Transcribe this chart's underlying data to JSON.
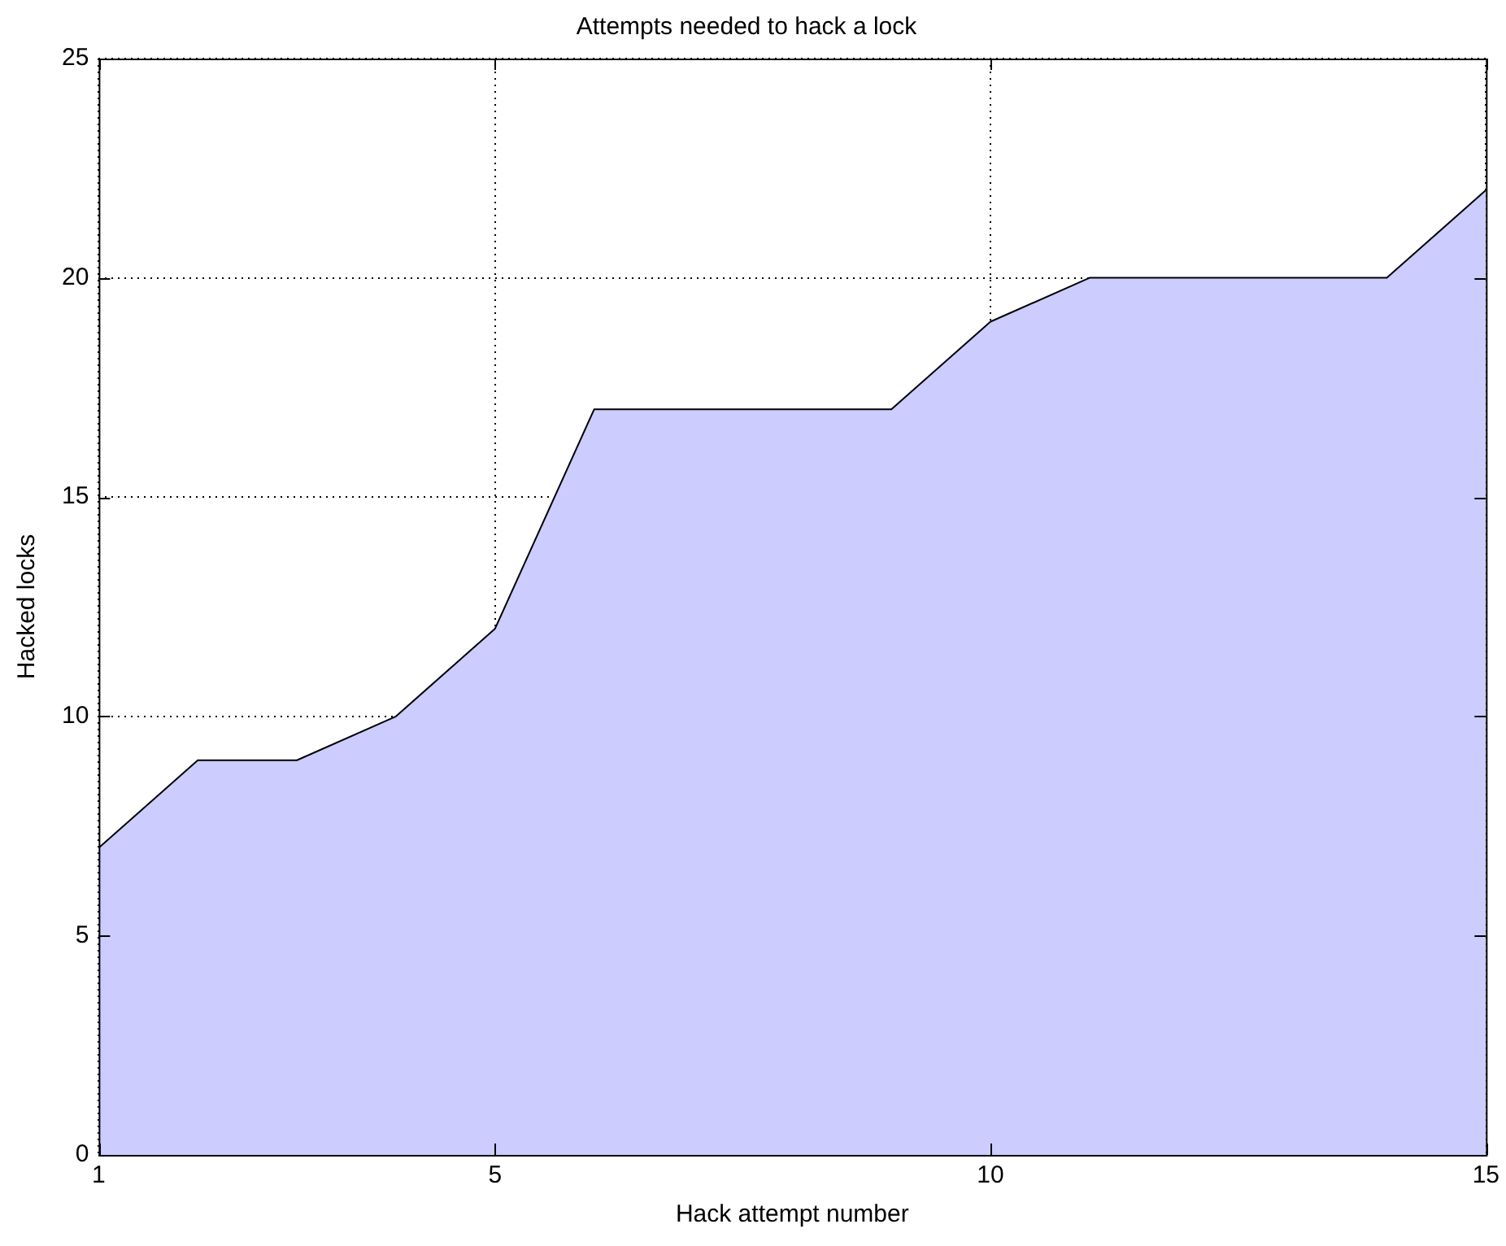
{
  "chart_data": {
    "type": "area",
    "title": "Attempts needed to hack a lock",
    "xlabel": "Hack attempt number",
    "ylabel": "Hacked locks",
    "x": [
      1,
      2,
      3,
      4,
      5,
      6,
      7,
      8,
      9,
      10,
      11,
      12,
      13,
      14,
      15
    ],
    "series": [
      {
        "color": "#ccccff",
        "values": [
          7,
          9,
          9,
          10,
          12,
          17,
          17,
          17,
          17,
          19,
          20,
          20,
          20,
          20,
          22
        ]
      }
    ],
    "xlim": [
      1,
      15
    ],
    "xticks": [
      1,
      5,
      10,
      15
    ],
    "ylim": [
      0,
      25
    ],
    "yticks": [
      0,
      5,
      10,
      15,
      20,
      25
    ],
    "grid": true,
    "marker": "none"
  }
}
